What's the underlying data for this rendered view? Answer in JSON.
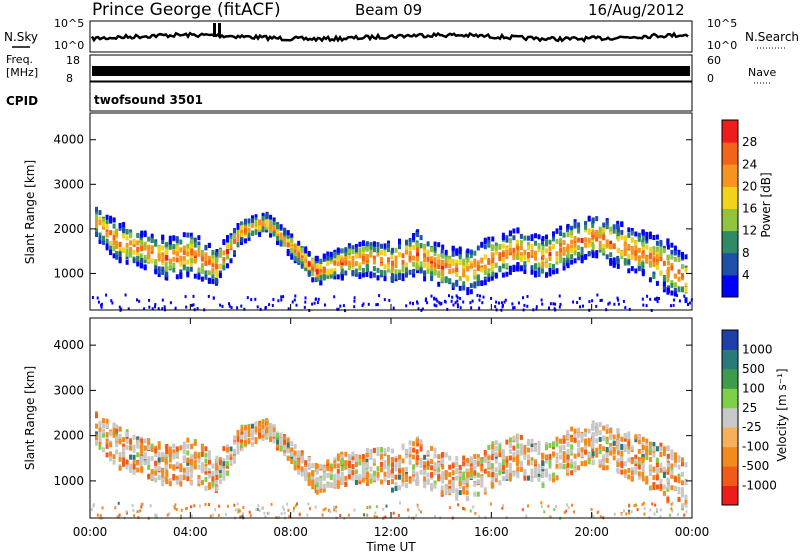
{
  "header": {
    "station": "Prince George (fitACF)",
    "beam": "Beam 09",
    "date": "16/Aug/2012"
  },
  "noise_panel": {
    "left_label": "N.Sky",
    "right_label": "N.Search",
    "left_ticks": [
      "10^5",
      "10^0"
    ],
    "right_ticks": [
      "10^5",
      "10^0"
    ]
  },
  "freq_panel": {
    "left_label_1": "Freq.",
    "left_label_2": "[MHz]",
    "left_ticks": [
      "18",
      "8"
    ],
    "right_ticks": [
      "60",
      "0"
    ],
    "right_label": "Nave"
  },
  "cpid": {
    "label": "CPID",
    "value": "twofsound 3501"
  },
  "chart_data": [
    {
      "type": "heatmap",
      "title": "Power",
      "ylabel": "Slant Range [km]",
      "ylim": [
        180,
        4600
      ],
      "yticks": [
        "1000",
        "2000",
        "3000",
        "4000"
      ],
      "x": [
        "00:00",
        "04:00",
        "08:00",
        "12:00",
        "16:00",
        "20:00",
        "00:00"
      ],
      "colorbar": {
        "label": "Power [dB]",
        "ticks": [
          "4",
          "8",
          "12",
          "16",
          "20",
          "24",
          "28"
        ],
        "range": [
          0,
          30
        ],
        "colors": [
          "#0000ff",
          "#1f50a8",
          "#2f8a66",
          "#8fc43c",
          "#f2d21a",
          "#f79320",
          "#f26418",
          "#ee1c1c"
        ]
      }
    },
    {
      "type": "heatmap",
      "title": "Velocity",
      "ylabel": "Slant Range [km]",
      "ylim": [
        180,
        4600
      ],
      "yticks": [
        "1000",
        "2000",
        "3000",
        "4000"
      ],
      "x": [
        "00:00",
        "04:00",
        "08:00",
        "12:00",
        "16:00",
        "20:00",
        "00:00"
      ],
      "xlabel": "Time UT",
      "colorbar": {
        "label": "Velocity [m s⁻¹]",
        "ticks": [
          "1000",
          "500",
          "100",
          "25",
          "-25",
          "-100",
          "-500",
          "-1000"
        ],
        "colors": [
          "#1f3fa8",
          "#2a7a7a",
          "#3d9b4a",
          "#7ed04a",
          "#c8c8c8",
          "#f7b05a",
          "#f48a1e",
          "#f25a18",
          "#ee1c1c"
        ]
      }
    }
  ]
}
